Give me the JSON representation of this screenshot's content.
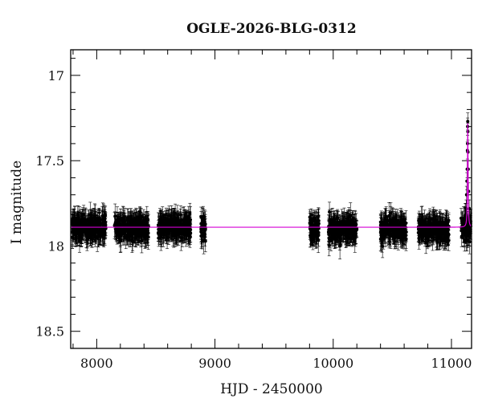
{
  "chart_data": {
    "type": "scatter",
    "title": "OGLE-2026-BLG-0312",
    "xlabel": "HJD - 2450000",
    "ylabel": "I magnitude",
    "xlim": [
      7780,
      11170
    ],
    "ylim": [
      18.6,
      16.85
    ],
    "y_inverted": true,
    "grid": false,
    "x_major_ticks": [
      8000,
      9000,
      10000,
      11000
    ],
    "x_tick_labels": [
      "8000",
      "9000",
      "10000",
      "11000"
    ],
    "x_minor_step": 200,
    "y_major_ticks": [
      17,
      17.5,
      18,
      18.5
    ],
    "y_tick_labels": [
      "17",
      "17.5",
      "18",
      "18.5"
    ],
    "y_minor_step": 0.1,
    "point_color": "#000000",
    "model_color": "#d400d4",
    "series": [
      {
        "type": "errorbar_scatter",
        "observing_seasons": [
          {
            "start": 7790,
            "end": 8080,
            "mean_mag": 17.89,
            "scatter": 0.05,
            "typical_error": 0.06
          },
          {
            "start": 8150,
            "end": 8440,
            "mean_mag": 17.89,
            "scatter": 0.05,
            "typical_error": 0.06
          },
          {
            "start": 8520,
            "end": 8800,
            "mean_mag": 17.89,
            "scatter": 0.05,
            "typical_error": 0.06
          },
          {
            "start": 8880,
            "end": 8920,
            "mean_mag": 17.9,
            "scatter": 0.05,
            "typical_error": 0.06
          },
          {
            "start": 9800,
            "end": 9880,
            "mean_mag": 17.9,
            "scatter": 0.05,
            "typical_error": 0.06
          },
          {
            "start": 9960,
            "end": 10200,
            "mean_mag": 17.9,
            "scatter": 0.05,
            "typical_error": 0.06
          },
          {
            "start": 10400,
            "end": 10620,
            "mean_mag": 17.9,
            "scatter": 0.05,
            "typical_error": 0.06
          },
          {
            "start": 10720,
            "end": 10980,
            "mean_mag": 17.9,
            "scatter": 0.05,
            "typical_error": 0.06
          },
          {
            "start": 11080,
            "end": 11165,
            "mean_mag": 17.89,
            "scatter": 0.05,
            "typical_error": 0.06
          }
        ],
        "event_points": [
          {
            "x": 11125,
            "y": 17.78
          },
          {
            "x": 11128,
            "y": 17.7
          },
          {
            "x": 11131,
            "y": 17.62
          },
          {
            "x": 11133,
            "y": 17.55
          },
          {
            "x": 11135,
            "y": 17.44
          },
          {
            "x": 11136,
            "y": 17.4
          },
          {
            "x": 11137,
            "y": 17.3
          },
          {
            "x": 11138,
            "y": 17.27
          },
          {
            "x": 11139,
            "y": 17.33
          },
          {
            "x": 11140,
            "y": 17.45
          },
          {
            "x": 11142,
            "y": 17.55
          },
          {
            "x": 11145,
            "y": 17.68
          },
          {
            "x": 11150,
            "y": 17.78
          },
          {
            "x": 11156,
            "y": 17.84
          }
        ]
      },
      {
        "type": "model_line",
        "baseline_mag": 17.89,
        "peak_time": 11138,
        "peak_mag": 17.28,
        "timescale": 3
      }
    ]
  }
}
